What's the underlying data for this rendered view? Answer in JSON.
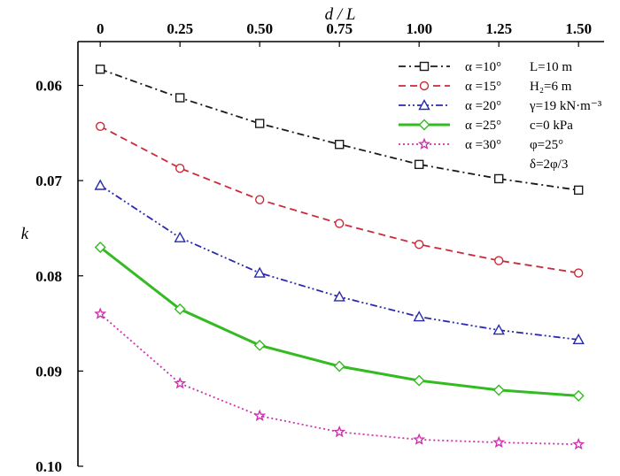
{
  "chart_data": {
    "type": "line",
    "xlabel": "d / L",
    "ylabel": "k",
    "xlim": [
      -0.07,
      1.58
    ],
    "ylim": [
      0.0554,
      0.1
    ],
    "y_inverted": true,
    "x_axis_position": "top",
    "x_ticks": [
      0,
      0.25,
      0.5,
      0.75,
      1.0,
      1.25,
      1.5
    ],
    "x_tick_labels": [
      "0",
      "0.25",
      "0.50",
      "0.75",
      "1.00",
      "1.25",
      "1.50"
    ],
    "y_ticks": [
      0.06,
      0.07,
      0.08,
      0.09,
      0.1
    ],
    "y_tick_labels": [
      "0.06",
      "0.07",
      "0.08",
      "0.09",
      "0.10"
    ],
    "grid": false,
    "legend_position": "top-right",
    "x": [
      0,
      0.25,
      0.5,
      0.75,
      1.0,
      1.25,
      1.5
    ],
    "series": [
      {
        "name": "α =10°",
        "color": "#1a1a1a",
        "dash": "dashdot",
        "marker": "square",
        "values": [
          0.0583,
          0.0613,
          0.064,
          0.0662,
          0.0683,
          0.0698,
          0.071
        ]
      },
      {
        "name": "α =15°",
        "color": "#cc2a3a",
        "dash": "dashed",
        "marker": "circle",
        "values": [
          0.0643,
          0.0687,
          0.072,
          0.0745,
          0.0767,
          0.0784,
          0.0797
        ]
      },
      {
        "name": "α =20°",
        "color": "#2a2ab0",
        "dash": "dashdotdot",
        "marker": "triangle",
        "values": [
          0.0705,
          0.076,
          0.0797,
          0.0822,
          0.0843,
          0.0857,
          0.0867
        ]
      },
      {
        "name": "α =25°",
        "color": "#33bb22",
        "dash": "solid",
        "marker": "diamond",
        "values": [
          0.077,
          0.0835,
          0.0873,
          0.0895,
          0.091,
          0.092,
          0.0926
        ]
      },
      {
        "name": "α =30°",
        "color": "#cc33aa",
        "dash": "dotted",
        "marker": "star",
        "values": [
          0.084,
          0.0913,
          0.0947,
          0.0964,
          0.0972,
          0.0975,
          0.0977
        ]
      }
    ],
    "parameters": [
      "L=10  m",
      "H₂=6  m",
      "γ=19  kN·m⁻³",
      "c=0  kPa",
      "φ=25°",
      "δ=2φ/3"
    ]
  }
}
